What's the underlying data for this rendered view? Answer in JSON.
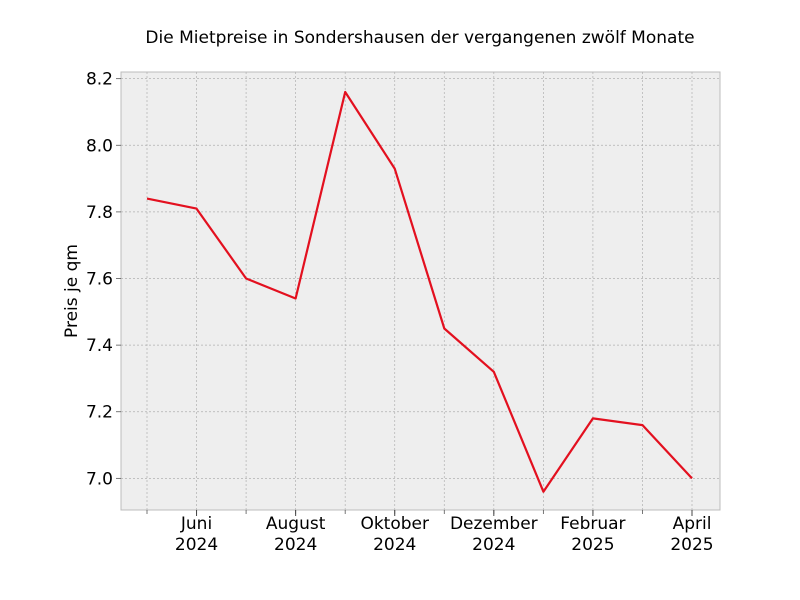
{
  "chart_data": {
    "type": "line",
    "title": "Die Mietpreise in Sondershausen der vergangenen zwölf Monate",
    "xlabel": "",
    "ylabel": "Preis je qm",
    "x": [
      "2024-05",
      "2024-06",
      "2024-07",
      "2024-08",
      "2024-09",
      "2024-10",
      "2024-11",
      "2024-12",
      "2025-01",
      "2025-02",
      "2025-03",
      "2025-04"
    ],
    "series": [
      {
        "values": [
          7.84,
          7.81,
          7.6,
          7.54,
          8.16,
          7.93,
          7.45,
          7.32,
          6.96,
          7.18,
          7.16,
          7.0
        ]
      }
    ],
    "ylim": [
      6.905,
      8.22
    ],
    "yticks": [
      "7.0",
      "7.2",
      "7.4",
      "7.6",
      "7.8",
      "8.0",
      "8.2"
    ],
    "xticks": [
      {
        "x": "2024-06",
        "month": "Juni",
        "year": "2024"
      },
      {
        "x": "2024-08",
        "month": "August",
        "year": "2024"
      },
      {
        "x": "2024-10",
        "month": "Oktober",
        "year": "2024"
      },
      {
        "x": "2024-12",
        "month": "Dezember",
        "year": "2024"
      },
      {
        "x": "2025-02",
        "month": "Februar",
        "year": "2025"
      },
      {
        "x": "2025-04",
        "month": "April",
        "year": "2025"
      }
    ],
    "grid": true,
    "colors": {
      "line": "#e3101f",
      "plot_background": "#eeeeee",
      "grid": "#b0b0b0",
      "frame": "#bcbcbc"
    }
  }
}
